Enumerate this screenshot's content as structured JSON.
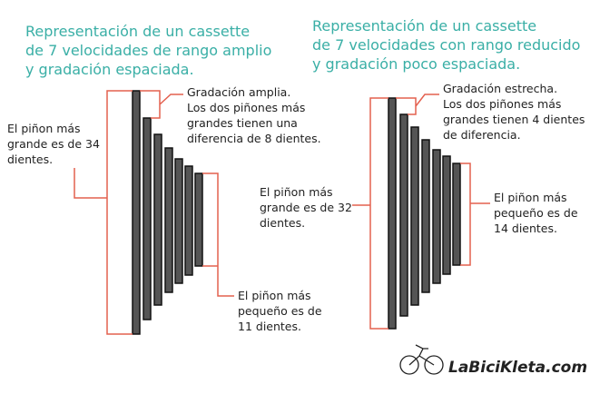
{
  "diagrams": [
    {
      "title": [
        "Representación de un cassette",
        "de 7 velocidades de rango amplio",
        "y gradación espaciada."
      ],
      "top_note": [
        "Gradación amplia.",
        "Los dos piñones más",
        "grandes tienen una",
        "diferencia de 8 dientes."
      ],
      "largest_note": [
        "El piñon más",
        "grande es de 34",
        "dientes."
      ],
      "smallest_note": [
        "El piñon más",
        "pequeño es de",
        "11 dientes."
      ]
    },
    {
      "title": [
        "Representación de un cassette",
        "de 7 velocidades con rango reducido",
        "y gradación poco espaciada."
      ],
      "top_note": [
        "Gradación estrecha.",
        "Los dos piñones más",
        "grandes tienen 4 dientes",
        "de diferencia."
      ],
      "largest_note": [
        "El piñon más",
        "grande es de 32",
        "dientes."
      ],
      "smallest_note": [
        "El piñon más",
        "pequeño es de",
        "14 dientes."
      ]
    }
  ],
  "logo": "LaBiciKleta.com"
}
